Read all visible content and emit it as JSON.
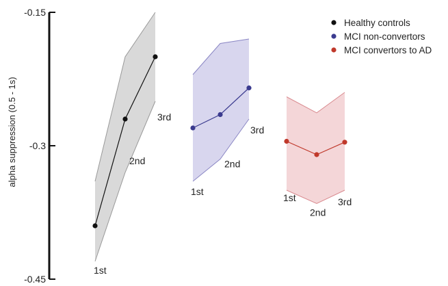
{
  "chart_data": {
    "type": "line",
    "ylabel": "alpha suppression (0.5 - 1s)",
    "ylim": [
      -0.45,
      -0.15
    ],
    "yticks": [
      -0.15,
      -0.3,
      -0.45
    ],
    "ytick_labels": [
      "-0.15",
      "-0.3",
      "-0.45"
    ],
    "x": [
      "1st",
      "2nd",
      "3rd"
    ],
    "grid": false,
    "legend_position": "top-right",
    "series": [
      {
        "name": "Healthy controls",
        "color": "#111111",
        "band_fill": "#d9d9d9",
        "band_stroke": "#999999",
        "values": [
          -0.39,
          -0.27,
          -0.2
        ],
        "band_upper": [
          -0.34,
          -0.2,
          -0.15
        ],
        "band_lower": [
          -0.43,
          -0.33,
          -0.25
        ],
        "point_labels": [
          "1st",
          "2nd",
          "3rd"
        ]
      },
      {
        "name": "MCI non-convertors",
        "color": "#3b3b8f",
        "band_fill": "#d8d6ee",
        "band_stroke": "#8a86c4",
        "values": [
          -0.28,
          -0.265,
          -0.235
        ],
        "band_upper": [
          -0.22,
          -0.185,
          -0.18
        ],
        "band_lower": [
          -0.34,
          -0.315,
          -0.27
        ],
        "point_labels": [
          "1st",
          "2nd",
          "3rd"
        ]
      },
      {
        "name": "MCI convertors to AD",
        "color": "#c0392b",
        "band_fill": "#f4d6d8",
        "band_stroke": "#d98a8f",
        "values": [
          -0.295,
          -0.31,
          -0.296
        ],
        "band_upper": [
          -0.245,
          -0.263,
          -0.24
        ],
        "band_lower": [
          -0.35,
          -0.365,
          -0.35
        ],
        "point_labels": [
          "1st",
          "2nd",
          "3rd"
        ]
      }
    ]
  }
}
